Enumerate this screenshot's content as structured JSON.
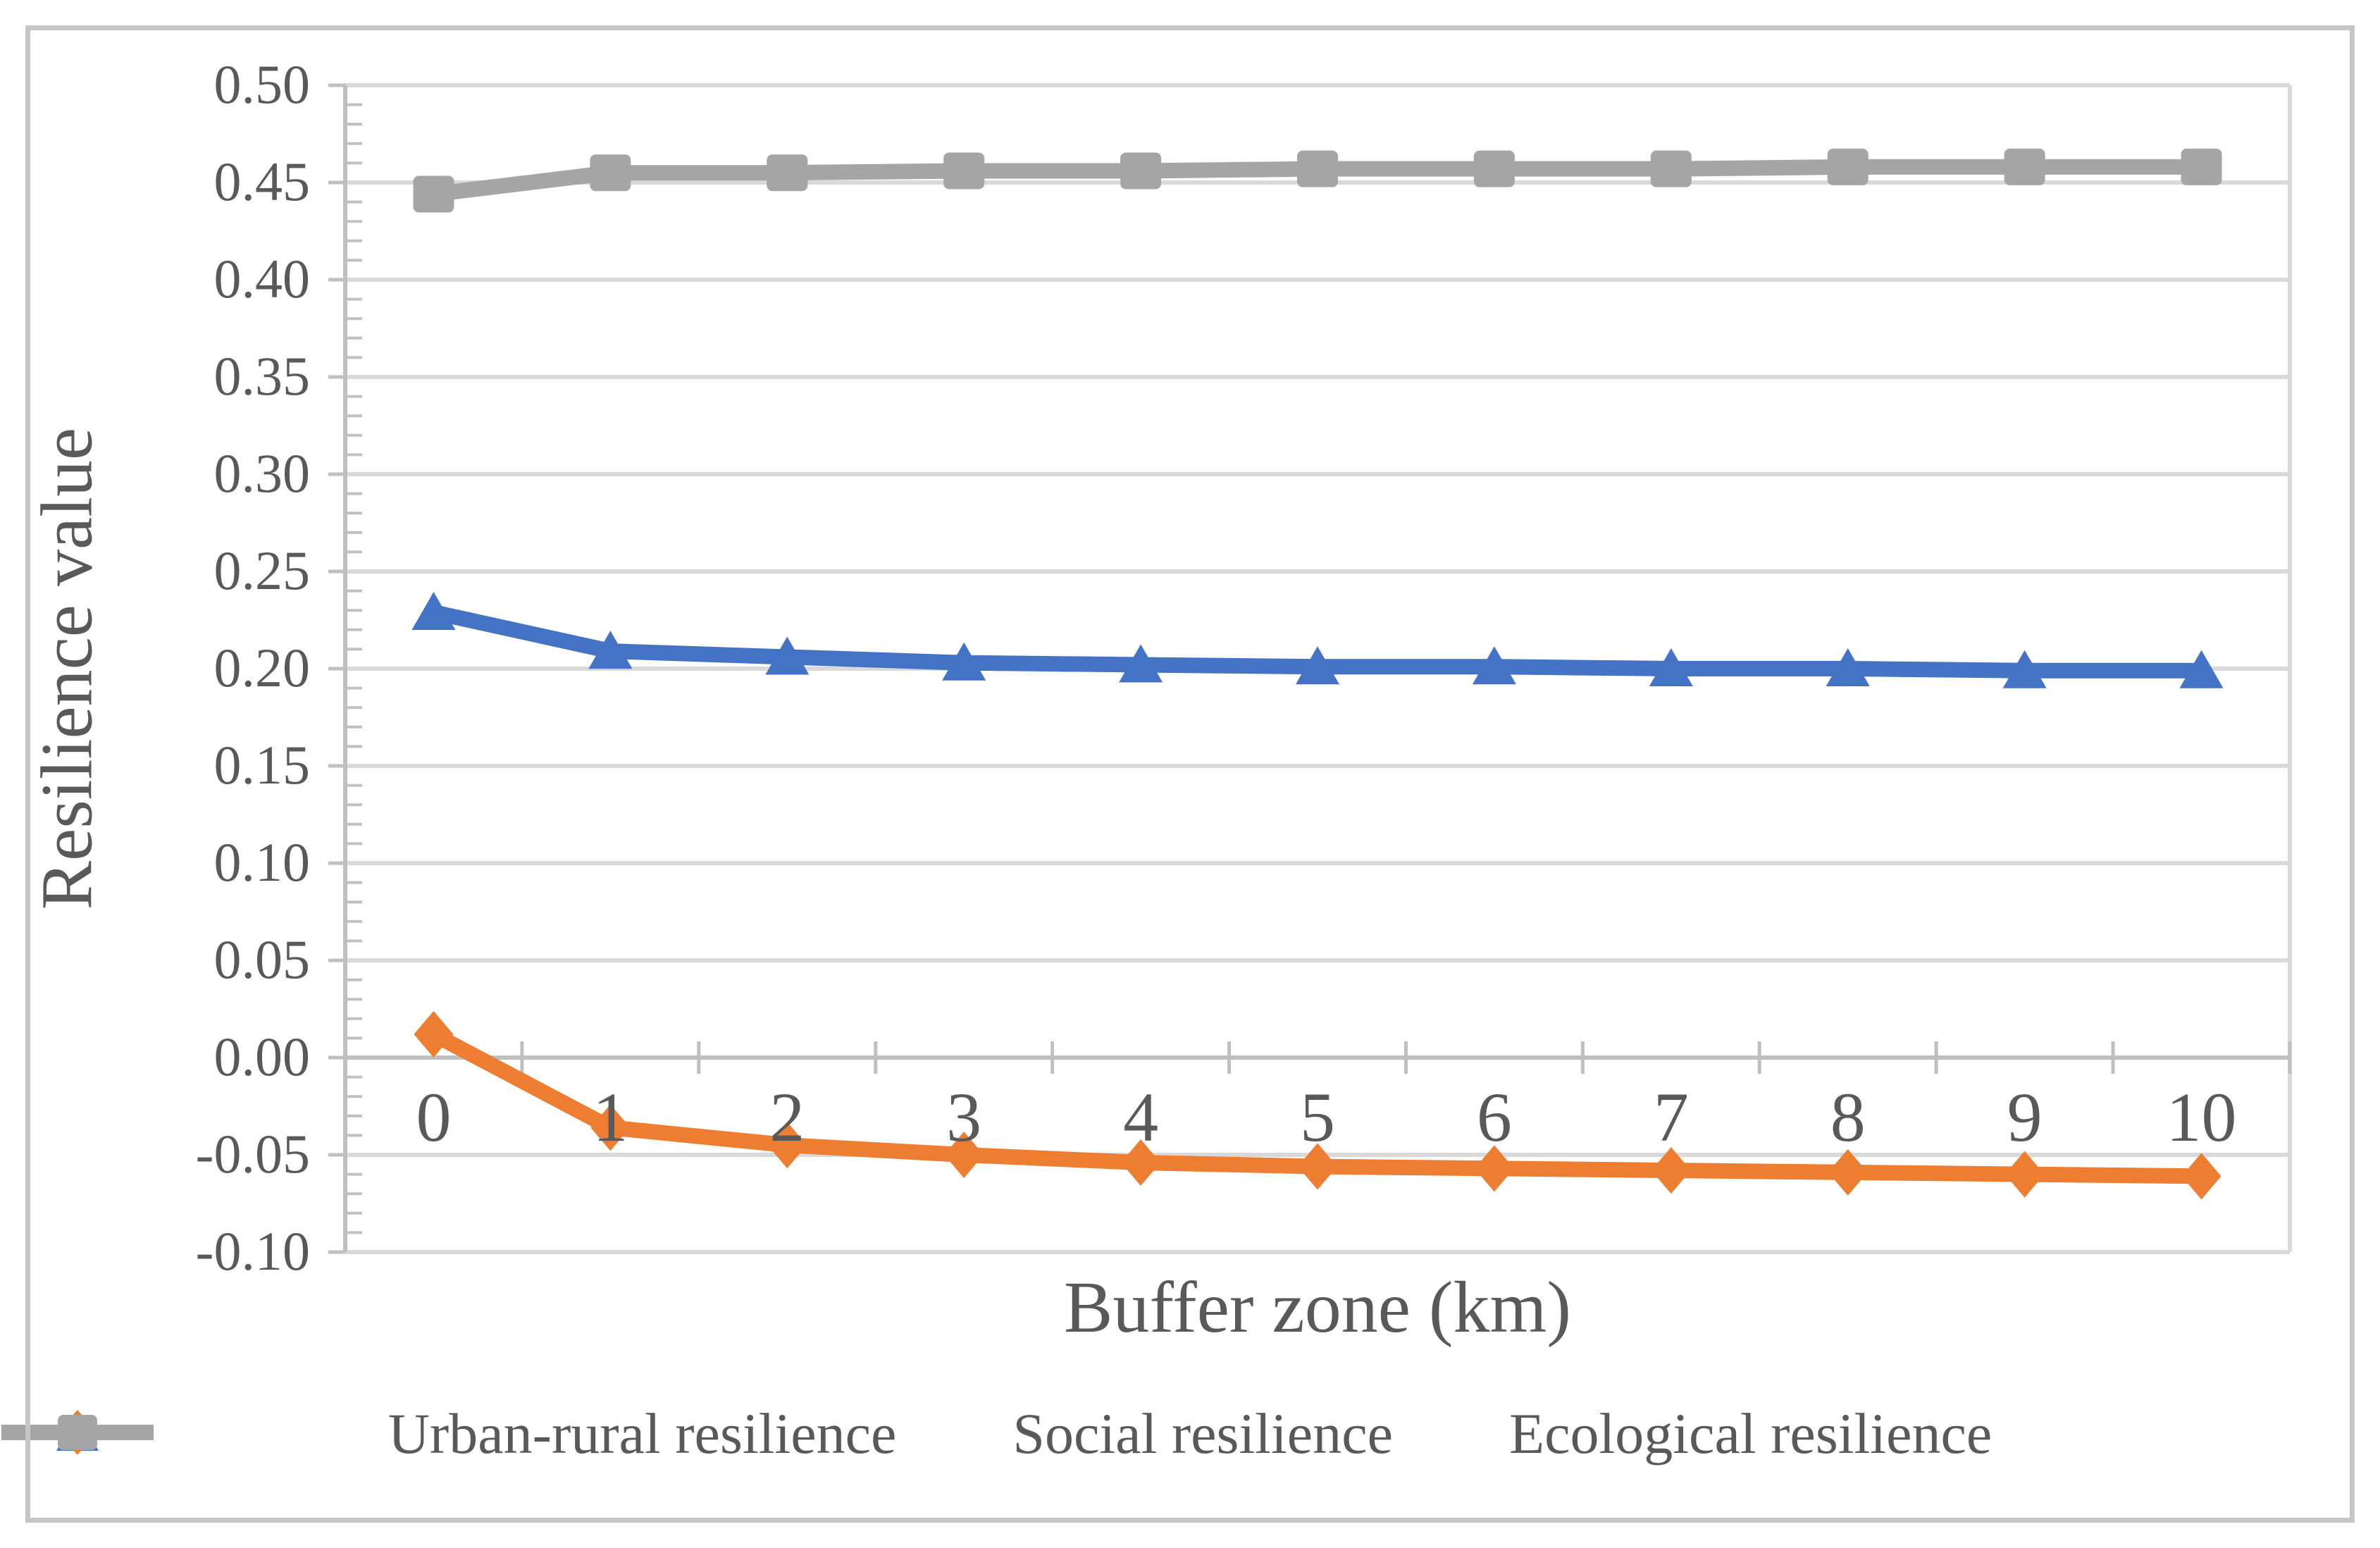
{
  "chart_data": {
    "type": "line",
    "title": "",
    "xlabel": "Buffer zone (km)",
    "ylabel": "Resilience value",
    "categories": [
      "0",
      "1",
      "2",
      "3",
      "4",
      "5",
      "6",
      "7",
      "8",
      "9",
      "10"
    ],
    "x": [
      0,
      1,
      2,
      3,
      4,
      5,
      6,
      7,
      8,
      9,
      10
    ],
    "ylim": [
      -0.1,
      0.5
    ],
    "y_major_step": 0.05,
    "y_minor_step": 0.01,
    "y_tick_format": "2dp",
    "grid": "horizontal-major",
    "legend_position": "bottom",
    "series": [
      {
        "name": "Urban-rural resilience",
        "color": "#4472C4",
        "marker": "triangle",
        "values": [
          0.229,
          0.209,
          0.206,
          0.203,
          0.202,
          0.201,
          0.201,
          0.2,
          0.2,
          0.199,
          0.199
        ]
      },
      {
        "name": "Social resilience",
        "color": "#ED7D31",
        "marker": "diamond",
        "values": [
          0.012,
          -0.036,
          -0.045,
          -0.05,
          -0.054,
          -0.056,
          -0.057,
          -0.058,
          -0.059,
          -0.06,
          -0.061
        ]
      },
      {
        "name": "Ecological resilience",
        "color": "#A5A5A5",
        "marker": "square",
        "values": [
          0.444,
          0.455,
          0.455,
          0.456,
          0.456,
          0.457,
          0.457,
          0.457,
          0.458,
          0.458,
          0.458
        ]
      }
    ]
  },
  "style_colors": {
    "gridline": "#D9D9D9",
    "axis_line": "#BFBFBF",
    "minor_tick": "#C0C0C0",
    "plot_border": "#D9D9D9",
    "text": "#595959",
    "frame_border": "#C6C6C6"
  }
}
